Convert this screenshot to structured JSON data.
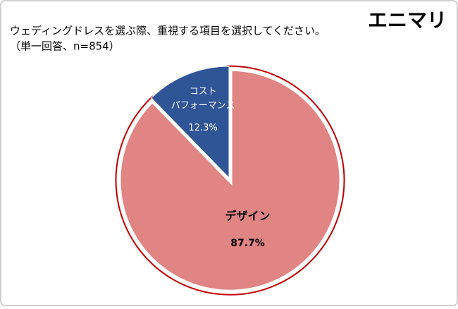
{
  "brand": "エニマリ",
  "chart_data": {
    "type": "pie",
    "title": "ウェディングドレスを選ぶ際、重視する項目を選択してください。",
    "subtitle": "（単一回答、n=854）",
    "categories": [
      "デザイン",
      "コスト\nパフォーマンス"
    ],
    "values": [
      87.7,
      12.3
    ],
    "value_labels": [
      "87.7%",
      "12.3%"
    ],
    "colors": [
      "#e08484",
      "#2f5597"
    ],
    "label_colors": [
      "#000000",
      "#ffffff"
    ]
  }
}
